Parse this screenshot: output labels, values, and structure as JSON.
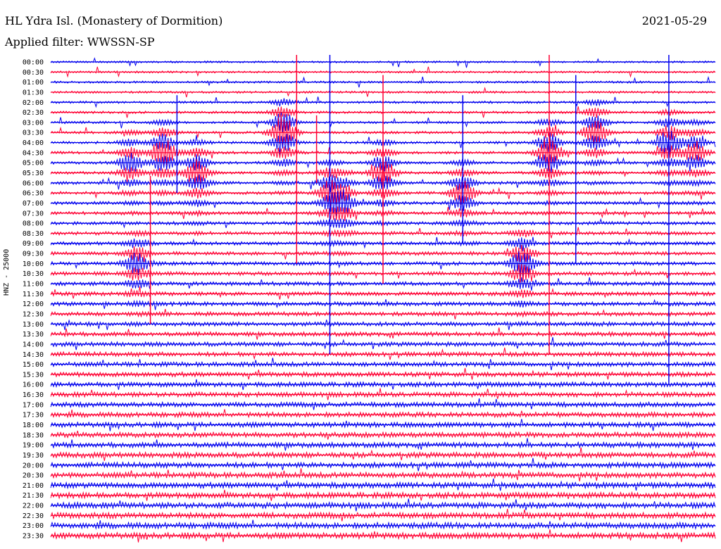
{
  "header": {
    "station": "HL Ydra Isl. (Monastery of Dormition)",
    "date": "2021-05-29",
    "filter": "Applied filter: WWSSN-SP"
  },
  "chart_data": {
    "type": "line",
    "title": "HL Ydra Isl. (Monastery of Dormition)",
    "ylabel": "HNZ - 25000",
    "rows": [
      "00:00",
      "00:30",
      "01:00",
      "01:30",
      "02:00",
      "02:30",
      "03:00",
      "03:30",
      "04:00",
      "04:30",
      "05:00",
      "05:30",
      "06:00",
      "06:30",
      "07:00",
      "07:30",
      "08:00",
      "08:30",
      "09:00",
      "09:30",
      "10:00",
      "10:30",
      "11:00",
      "11:30",
      "12:00",
      "12:30",
      "13:00",
      "13:30",
      "14:00",
      "14:30",
      "15:00",
      "15:30",
      "16:00",
      "16:30",
      "17:00",
      "17:30",
      "18:00",
      "18:30",
      "19:00",
      "19:30",
      "20:00",
      "20:30",
      "21:00",
      "21:30",
      "22:00",
      "22:30",
      "23:00",
      "23:30"
    ],
    "colors": [
      "#0000ee",
      "#ff0033"
    ],
    "events": [
      {
        "x": 0.12,
        "row": 10,
        "amp": 40
      },
      {
        "x": 0.17,
        "row": 9,
        "amp": 60
      },
      {
        "x": 0.22,
        "row": 11,
        "amp": 55
      },
      {
        "x": 0.35,
        "row": 7,
        "amp": 70
      },
      {
        "x": 0.42,
        "row": 13,
        "amp": 50
      },
      {
        "x": 0.44,
        "row": 14,
        "amp": 45
      },
      {
        "x": 0.5,
        "row": 11,
        "amp": 55
      },
      {
        "x": 0.62,
        "row": 13,
        "amp": 50
      },
      {
        "x": 0.71,
        "row": 20,
        "amp": 60
      },
      {
        "x": 0.75,
        "row": 9,
        "amp": 65
      },
      {
        "x": 0.82,
        "row": 7,
        "amp": 55
      },
      {
        "x": 0.93,
        "row": 8,
        "amp": 50
      },
      {
        "x": 0.97,
        "row": 9,
        "amp": 45
      },
      {
        "x": 0.13,
        "row": 20,
        "amp": 45
      }
    ]
  }
}
